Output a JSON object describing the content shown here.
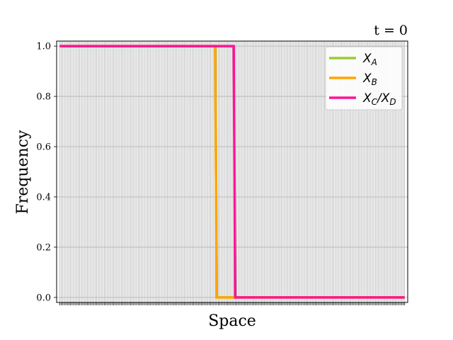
{
  "chart_data": {
    "type": "line",
    "title": "t = 0",
    "xlabel": "Space",
    "ylabel": "Frequency",
    "ylim": [
      -0.02,
      1.02
    ],
    "xlim": [
      -2,
      226
    ],
    "x_min": 0,
    "x_max": 224,
    "x_tick_count": 225,
    "x_tick_labels_shown": false,
    "yticks": [
      0.0,
      0.2,
      0.4,
      0.6,
      0.8,
      1.0
    ],
    "ytick_labels": [
      "0.0",
      "0.2",
      "0.4",
      "0.6",
      "0.8",
      "1.0"
    ],
    "grid": true,
    "legend_position": "top-right",
    "series": [
      {
        "name": "X_A",
        "legend_main": "X",
        "legend_sub": "A",
        "color": "#9acd32",
        "points": [
          [
            0,
            1.0
          ],
          [
            101,
            1.0
          ],
          [
            102,
            0.0
          ],
          [
            224,
            0.0
          ]
        ]
      },
      {
        "name": "X_B",
        "legend_main": "X",
        "legend_sub": "B",
        "color": "#ffa500",
        "points": [
          [
            0,
            1.0
          ],
          [
            101,
            1.0
          ],
          [
            102,
            0.0
          ],
          [
            224,
            0.0
          ]
        ]
      },
      {
        "name": "X_C/X_D",
        "legend_main": "X",
        "legend_sub": "C",
        "legend_sep": "/X",
        "legend_sub2": "D",
        "color": "#ff1493",
        "points": [
          [
            0,
            1.0
          ],
          [
            113,
            1.0
          ],
          [
            114,
            0.0
          ],
          [
            224,
            0.0
          ]
        ]
      }
    ]
  }
}
